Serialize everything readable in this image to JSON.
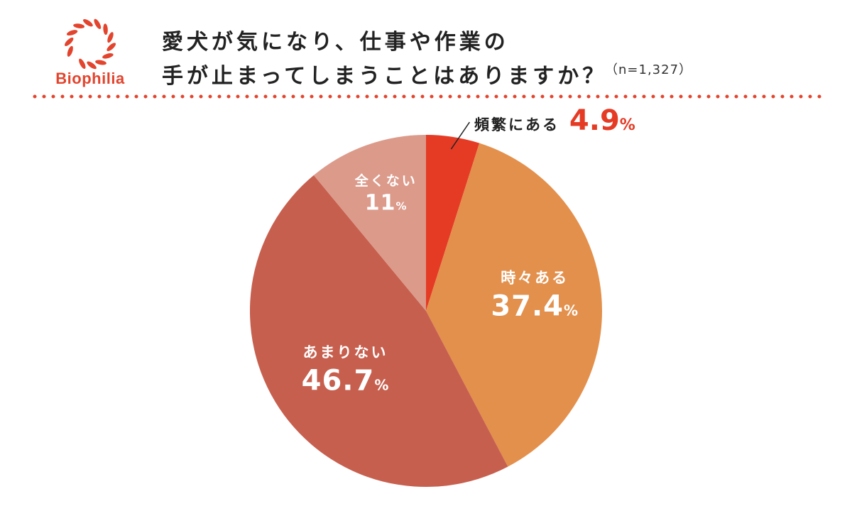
{
  "brand": {
    "logo_text": "Biophilia",
    "color": "#e3442d"
  },
  "title": {
    "line1": "愛犬が気になり、仕事や作業の",
    "line2": "手が止まってしまうことはありますか？"
  },
  "sample_size": "（n=1,327）",
  "chart_data": {
    "type": "pie",
    "title": "愛犬が気になり、仕事や作業の手が止まってしまうことはありますか？",
    "slices": [
      {
        "label": "頻繁にある",
        "value": 4.9,
        "display": "4.9",
        "color": "#e53b25"
      },
      {
        "label": "時々ある",
        "value": 37.4,
        "display": "37.4",
        "color": "#e3904c"
      },
      {
        "label": "あまりない",
        "value": 46.7,
        "display": "46.7",
        "color": "#c75f4e"
      },
      {
        "label": "全くない",
        "value": 11,
        "display": "11",
        "color": "#dc9a8a"
      }
    ],
    "unit": "%",
    "start": "12 o'clock, clockwise",
    "legend": "none"
  }
}
